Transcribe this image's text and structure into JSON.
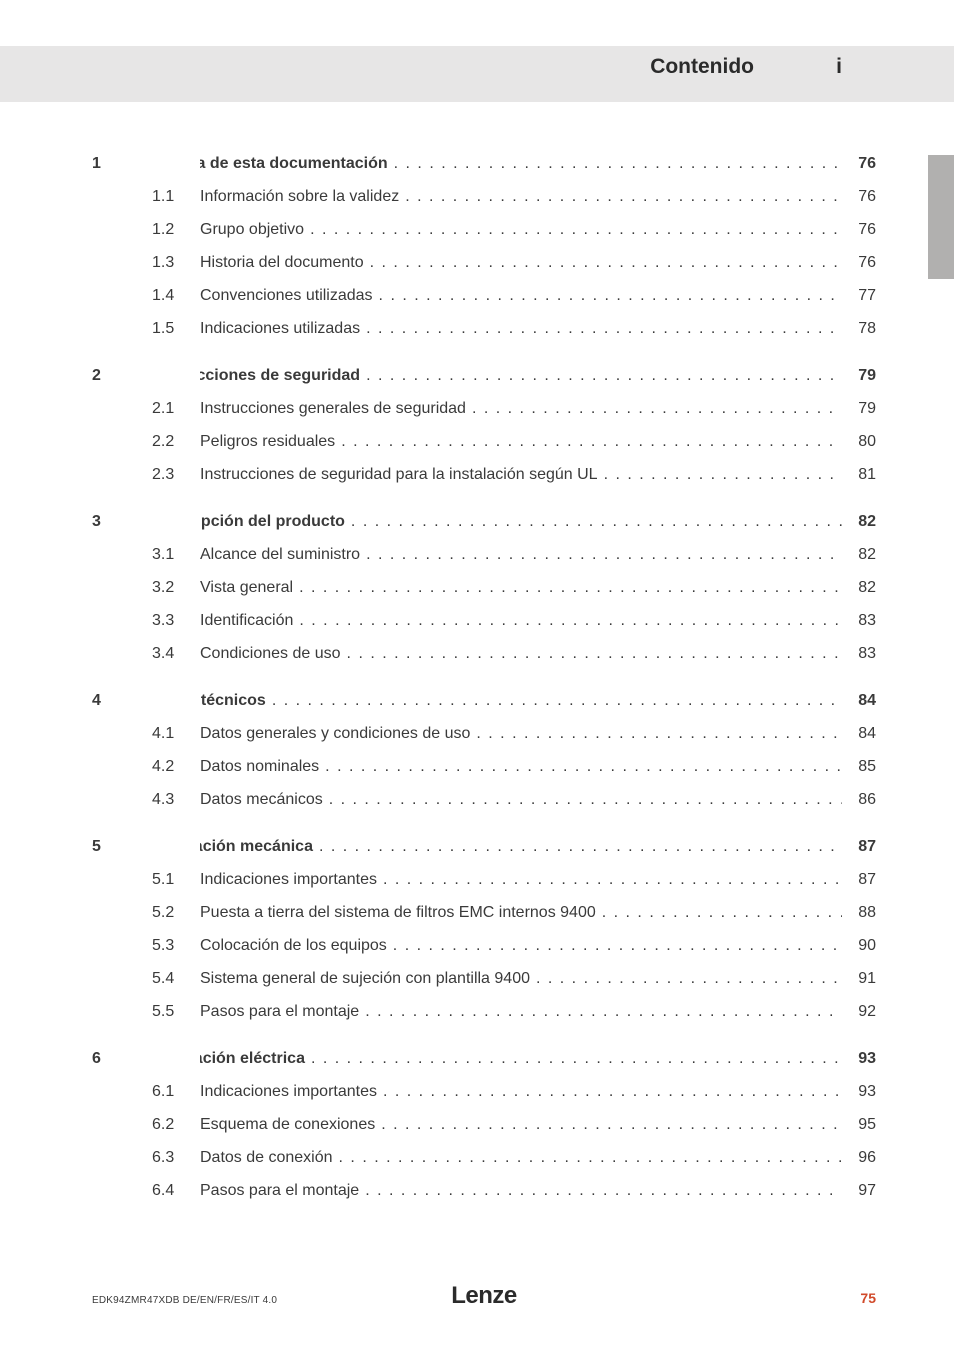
{
  "header": {
    "title": "Contenido",
    "index": "i"
  },
  "colors": {
    "header_bar": "#e7e6e6",
    "side_tab": "#b1b0af",
    "text": "#3a3a3a",
    "page_number": "#d14a2a",
    "background": "#ffffff"
  },
  "toc": [
    {
      "type": "section",
      "num": "1",
      "title": "Acerca de esta documentación",
      "page": "76"
    },
    {
      "type": "sub",
      "sub": "1.1",
      "title": "Información sobre la validez",
      "page": "76"
    },
    {
      "type": "sub",
      "sub": "1.2",
      "title": "Grupo objetivo",
      "page": "76"
    },
    {
      "type": "sub",
      "sub": "1.3",
      "title": "Historia del documento",
      "page": "76"
    },
    {
      "type": "sub",
      "sub": "1.4",
      "title": "Convenciones utilizadas",
      "page": "77"
    },
    {
      "type": "sub",
      "sub": "1.5",
      "title": "Indicaciones utilizadas",
      "page": "78"
    },
    {
      "type": "gap"
    },
    {
      "type": "section",
      "num": "2",
      "title": "Instrucciones de seguridad",
      "page": "79"
    },
    {
      "type": "sub",
      "sub": "2.1",
      "title": "Instrucciones generales de seguridad",
      "page": "79"
    },
    {
      "type": "sub",
      "sub": "2.2",
      "title": "Peligros residuales",
      "page": "80"
    },
    {
      "type": "sub",
      "sub": "2.3",
      "title": "Instrucciones de seguridad para la instalación según UL",
      "page": "81"
    },
    {
      "type": "gap"
    },
    {
      "type": "section",
      "num": "3",
      "title": "Descripción del producto",
      "page": "82"
    },
    {
      "type": "sub",
      "sub": "3.1",
      "title": "Alcance del suministro",
      "page": "82"
    },
    {
      "type": "sub",
      "sub": "3.2",
      "title": "Vista general",
      "page": "82"
    },
    {
      "type": "sub",
      "sub": "3.3",
      "title": "Identificación",
      "page": "83"
    },
    {
      "type": "sub",
      "sub": "3.4",
      "title": "Condiciones de uso",
      "page": "83"
    },
    {
      "type": "gap"
    },
    {
      "type": "section",
      "num": "4",
      "title": "Datos técnicos",
      "page": "84"
    },
    {
      "type": "sub",
      "sub": "4.1",
      "title": "Datos generales y condiciones de uso",
      "page": "84"
    },
    {
      "type": "sub",
      "sub": "4.2",
      "title": "Datos nominales",
      "page": "85"
    },
    {
      "type": "sub",
      "sub": "4.3",
      "title": "Datos mecánicos",
      "page": "86"
    },
    {
      "type": "gap"
    },
    {
      "type": "section",
      "num": "5",
      "title": "Instalación mecánica",
      "page": "87"
    },
    {
      "type": "sub",
      "sub": "5.1",
      "title": "Indicaciones importantes",
      "page": "87"
    },
    {
      "type": "sub",
      "sub": "5.2",
      "title": "Puesta a tierra del sistema de filtros EMC internos 9400",
      "page": "88"
    },
    {
      "type": "sub",
      "sub": "5.3",
      "title": "Colocación de los equipos",
      "page": "90"
    },
    {
      "type": "sub",
      "sub": "5.4",
      "title": "Sistema general de sujeción con plantilla 9400",
      "page": "91"
    },
    {
      "type": "sub",
      "sub": "5.5",
      "title": "Pasos para el montaje",
      "page": "92"
    },
    {
      "type": "gap"
    },
    {
      "type": "section",
      "num": "6",
      "title": "Instalación eléctrica",
      "page": "93"
    },
    {
      "type": "sub",
      "sub": "6.1",
      "title": "Indicaciones importantes",
      "page": "93"
    },
    {
      "type": "sub",
      "sub": "6.2",
      "title": "Esquema de conexiones",
      "page": "95"
    },
    {
      "type": "sub",
      "sub": "6.3",
      "title": "Datos de conexión",
      "page": "96"
    },
    {
      "type": "sub",
      "sub": "6.4",
      "title": "Pasos para el montaje",
      "page": "97"
    }
  ],
  "footer": {
    "left": "EDK94ZMR47XDB   DE/EN/FR/ES/IT   4.0",
    "logo": "Lenze",
    "page": "75"
  },
  "leader_dots": " .  .  .  .  .  .  .  .  .  .  .  .  .  .  .  .  .  .  .  .  .  .  .  .  .  .  .  .  .  .  .  .  .  .  .  .  .  .  .  .  .  .  .  .  .  .  .  .  .  .  .  .  .  .  .  .  .  .  .  .  .  .  .  .  .  .  .  .  .  .  .  . "
}
